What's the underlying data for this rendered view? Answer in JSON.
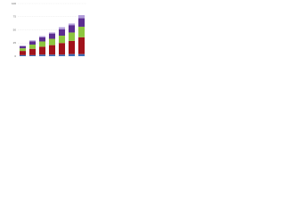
{
  "chart_data": {
    "type": "stacked-bar",
    "categories": [
      null,
      null,
      null,
      null,
      null,
      null,
      null
    ],
    "series": [
      {
        "name": null,
        "color": "#3b6fb6",
        "values": [
          2,
          2,
          3,
          3,
          3,
          4,
          4
        ]
      },
      {
        "name": null,
        "color": "#a1131b",
        "values": [
          8,
          12,
          15,
          18,
          22,
          25,
          32
        ]
      },
      {
        "name": null,
        "color": "#8dc63f",
        "values": [
          5,
          8,
          10,
          12,
          14,
          16,
          20
        ]
      },
      {
        "name": null,
        "color": "#5c2d91",
        "values": [
          4,
          6,
          8,
          10,
          12,
          14,
          16
        ]
      },
      {
        "name": null,
        "color": "#b19cd9",
        "values": [
          1,
          2,
          2,
          2,
          4,
          3,
          6
        ]
      }
    ],
    "ylim": [
      0,
      100
    ],
    "yticks": [
      0,
      25,
      50,
      75,
      100
    ],
    "grid": true
  }
}
